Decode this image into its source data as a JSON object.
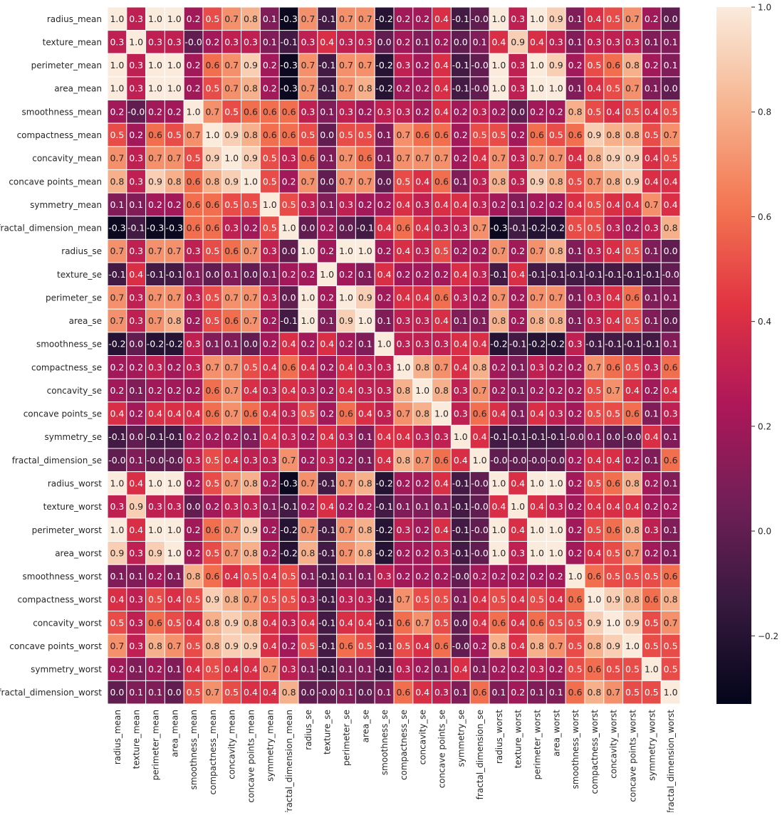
{
  "chart_data": {
    "type": "heatmap",
    "title": "",
    "xlabel": "",
    "ylabel": "",
    "labels": [
      "radius_mean",
      "texture_mean",
      "perimeter_mean",
      "area_mean",
      "smoothness_mean",
      "compactness_mean",
      "concavity_mean",
      "concave points_mean",
      "symmetry_mean",
      "fractal_dimension_mean",
      "radius_se",
      "texture_se",
      "perimeter_se",
      "area_se",
      "smoothness_se",
      "compactness_se",
      "concavity_se",
      "concave points_se",
      "symmetry_se",
      "fractal_dimension_se",
      "radius_worst",
      "texture_worst",
      "perimeter_worst",
      "area_worst",
      "smoothness_worst",
      "compactness_worst",
      "concavity_worst",
      "concave points_worst",
      "symmetry_worst",
      "fractal_dimension_worst"
    ],
    "value_labels": [
      [
        "1.0",
        "0.3",
        "1.0",
        "1.0",
        "0.2",
        "0.5",
        "0.7",
        "0.8",
        "0.1",
        "-0.3",
        "0.7",
        "-0.1",
        "0.7",
        "0.7",
        "-0.2",
        "0.2",
        "0.2",
        "0.4",
        "-0.1",
        "-0.0",
        "1.0",
        "0.3",
        "1.0",
        "0.9",
        "0.1",
        "0.4",
        "0.5",
        "0.7",
        "0.2",
        "0.0"
      ],
      [
        "0.3",
        "1.0",
        "0.3",
        "0.3",
        "-0.0",
        "0.2",
        "0.3",
        "0.3",
        "0.1",
        "-0.1",
        "0.3",
        "0.4",
        "0.3",
        "0.3",
        "0.0",
        "0.2",
        "0.1",
        "0.2",
        "0.0",
        "0.1",
        "0.4",
        "0.9",
        "0.4",
        "0.3",
        "0.1",
        "0.3",
        "0.3",
        "0.3",
        "0.1",
        "0.1"
      ],
      [
        "1.0",
        "0.3",
        "1.0",
        "1.0",
        "0.2",
        "0.6",
        "0.7",
        "0.9",
        "0.2",
        "-0.3",
        "0.7",
        "-0.1",
        "0.7",
        "0.7",
        "-0.2",
        "0.3",
        "0.2",
        "0.4",
        "-0.1",
        "-0.0",
        "1.0",
        "0.3",
        "1.0",
        "0.9",
        "0.2",
        "0.5",
        "0.6",
        "0.8",
        "0.2",
        "0.1"
      ],
      [
        "1.0",
        "0.3",
        "1.0",
        "1.0",
        "0.2",
        "0.5",
        "0.7",
        "0.8",
        "0.2",
        "-0.3",
        "0.7",
        "-0.1",
        "0.7",
        "0.8",
        "-0.2",
        "0.2",
        "0.2",
        "0.4",
        "-0.1",
        "-0.0",
        "1.0",
        "0.3",
        "1.0",
        "1.0",
        "0.1",
        "0.4",
        "0.5",
        "0.7",
        "0.1",
        "0.0"
      ],
      [
        "0.2",
        "-0.0",
        "0.2",
        "0.2",
        "1.0",
        "0.7",
        "0.5",
        "0.6",
        "0.6",
        "0.6",
        "0.3",
        "0.1",
        "0.3",
        "0.2",
        "0.3",
        "0.3",
        "0.2",
        "0.4",
        "0.2",
        "0.3",
        "0.2",
        "0.0",
        "0.2",
        "0.2",
        "0.8",
        "0.5",
        "0.4",
        "0.5",
        "0.4",
        "0.5"
      ],
      [
        "0.5",
        "0.2",
        "0.6",
        "0.5",
        "0.7",
        "1.0",
        "0.9",
        "0.8",
        "0.6",
        "0.6",
        "0.5",
        "0.0",
        "0.5",
        "0.5",
        "0.1",
        "0.7",
        "0.6",
        "0.6",
        "0.2",
        "0.5",
        "0.5",
        "0.2",
        "0.6",
        "0.5",
        "0.6",
        "0.9",
        "0.8",
        "0.8",
        "0.5",
        "0.7"
      ],
      [
        "0.7",
        "0.3",
        "0.7",
        "0.7",
        "0.5",
        "0.9",
        "1.0",
        "0.9",
        "0.5",
        "0.3",
        "0.6",
        "0.1",
        "0.7",
        "0.6",
        "0.1",
        "0.7",
        "0.7",
        "0.7",
        "0.2",
        "0.4",
        "0.7",
        "0.3",
        "0.7",
        "0.7",
        "0.4",
        "0.8",
        "0.9",
        "0.9",
        "0.4",
        "0.5"
      ],
      [
        "0.8",
        "0.3",
        "0.9",
        "0.8",
        "0.6",
        "0.8",
        "0.9",
        "1.0",
        "0.5",
        "0.2",
        "0.7",
        "0.0",
        "0.7",
        "0.7",
        "0.0",
        "0.5",
        "0.4",
        "0.6",
        "0.1",
        "0.3",
        "0.8",
        "0.3",
        "0.9",
        "0.8",
        "0.5",
        "0.7",
        "0.8",
        "0.9",
        "0.4",
        "0.4"
      ],
      [
        "0.1",
        "0.1",
        "0.2",
        "0.2",
        "0.6",
        "0.6",
        "0.5",
        "0.5",
        "1.0",
        "0.5",
        "0.3",
        "0.1",
        "0.3",
        "0.2",
        "0.2",
        "0.4",
        "0.3",
        "0.4",
        "0.4",
        "0.3",
        "0.2",
        "0.1",
        "0.2",
        "0.2",
        "0.4",
        "0.5",
        "0.4",
        "0.4",
        "0.7",
        "0.4"
      ],
      [
        "-0.3",
        "-0.1",
        "-0.3",
        "-0.3",
        "0.6",
        "0.6",
        "0.3",
        "0.2",
        "0.5",
        "1.0",
        "0.0",
        "0.2",
        "0.0",
        "-0.1",
        "0.4",
        "0.6",
        "0.4",
        "0.3",
        "0.3",
        "0.7",
        "-0.3",
        "-0.1",
        "-0.2",
        "-0.2",
        "0.5",
        "0.5",
        "0.3",
        "0.2",
        "0.3",
        "0.8"
      ],
      [
        "0.7",
        "0.3",
        "0.7",
        "0.7",
        "0.3",
        "0.5",
        "0.6",
        "0.7",
        "0.3",
        "0.0",
        "1.0",
        "0.2",
        "1.0",
        "1.0",
        "0.2",
        "0.4",
        "0.3",
        "0.5",
        "0.2",
        "0.2",
        "0.7",
        "0.2",
        "0.7",
        "0.8",
        "0.1",
        "0.3",
        "0.4",
        "0.5",
        "0.1",
        "0.0"
      ],
      [
        "-0.1",
        "0.4",
        "-0.1",
        "-0.1",
        "0.1",
        "0.0",
        "0.1",
        "0.0",
        "0.1",
        "0.2",
        "0.2",
        "1.0",
        "0.2",
        "0.1",
        "0.4",
        "0.2",
        "0.2",
        "0.2",
        "0.4",
        "0.3",
        "-0.1",
        "0.4",
        "-0.1",
        "-0.1",
        "-0.1",
        "-0.1",
        "-0.1",
        "-0.1",
        "-0.1",
        "-0.0"
      ],
      [
        "0.7",
        "0.3",
        "0.7",
        "0.7",
        "0.3",
        "0.5",
        "0.7",
        "0.7",
        "0.3",
        "0.0",
        "1.0",
        "0.2",
        "1.0",
        "0.9",
        "0.2",
        "0.4",
        "0.4",
        "0.6",
        "0.3",
        "0.2",
        "0.7",
        "0.2",
        "0.7",
        "0.7",
        "0.1",
        "0.3",
        "0.4",
        "0.6",
        "0.1",
        "0.1"
      ],
      [
        "0.7",
        "0.3",
        "0.7",
        "0.8",
        "0.2",
        "0.5",
        "0.6",
        "0.7",
        "0.2",
        "-0.1",
        "1.0",
        "0.1",
        "0.9",
        "1.0",
        "0.1",
        "0.3",
        "0.3",
        "0.4",
        "0.1",
        "0.1",
        "0.8",
        "0.2",
        "0.8",
        "0.8",
        "0.1",
        "0.3",
        "0.4",
        "0.5",
        "0.1",
        "0.0"
      ],
      [
        "-0.2",
        "0.0",
        "-0.2",
        "-0.2",
        "0.3",
        "0.1",
        "0.1",
        "0.0",
        "0.2",
        "0.4",
        "0.2",
        "0.4",
        "0.2",
        "0.1",
        "1.0",
        "0.3",
        "0.3",
        "0.3",
        "0.4",
        "0.4",
        "-0.2",
        "-0.1",
        "-0.2",
        "-0.2",
        "0.3",
        "-0.1",
        "-0.1",
        "-0.1",
        "-0.1",
        "0.1"
      ],
      [
        "0.2",
        "0.2",
        "0.3",
        "0.2",
        "0.3",
        "0.7",
        "0.7",
        "0.5",
        "0.4",
        "0.6",
        "0.4",
        "0.2",
        "0.4",
        "0.3",
        "0.3",
        "1.0",
        "0.8",
        "0.7",
        "0.4",
        "0.8",
        "0.2",
        "0.1",
        "0.3",
        "0.2",
        "0.2",
        "0.7",
        "0.6",
        "0.5",
        "0.3",
        "0.6"
      ],
      [
        "0.2",
        "0.1",
        "0.2",
        "0.2",
        "0.2",
        "0.6",
        "0.7",
        "0.4",
        "0.3",
        "0.4",
        "0.3",
        "0.2",
        "0.4",
        "0.3",
        "0.3",
        "0.8",
        "1.0",
        "0.8",
        "0.3",
        "0.7",
        "0.2",
        "0.1",
        "0.2",
        "0.2",
        "0.2",
        "0.5",
        "0.7",
        "0.4",
        "0.2",
        "0.4"
      ],
      [
        "0.4",
        "0.2",
        "0.4",
        "0.4",
        "0.4",
        "0.6",
        "0.7",
        "0.6",
        "0.4",
        "0.3",
        "0.5",
        "0.2",
        "0.6",
        "0.4",
        "0.3",
        "0.7",
        "0.8",
        "1.0",
        "0.3",
        "0.6",
        "0.4",
        "0.1",
        "0.4",
        "0.3",
        "0.2",
        "0.5",
        "0.5",
        "0.6",
        "0.1",
        "0.3"
      ],
      [
        "-0.1",
        "0.0",
        "-0.1",
        "-0.1",
        "0.2",
        "0.2",
        "0.2",
        "0.1",
        "0.4",
        "0.3",
        "0.2",
        "0.4",
        "0.3",
        "0.1",
        "0.4",
        "0.4",
        "0.3",
        "0.3",
        "1.0",
        "0.4",
        "-0.1",
        "-0.1",
        "-0.1",
        "-0.1",
        "-0.0",
        "0.1",
        "0.0",
        "-0.0",
        "0.4",
        "0.1"
      ],
      [
        "-0.0",
        "0.1",
        "-0.0",
        "-0.0",
        "0.3",
        "0.5",
        "0.4",
        "0.3",
        "0.3",
        "0.7",
        "0.2",
        "0.3",
        "0.2",
        "0.1",
        "0.4",
        "0.8",
        "0.7",
        "0.6",
        "0.4",
        "1.0",
        "-0.0",
        "-0.0",
        "-0.0",
        "-0.0",
        "0.2",
        "0.4",
        "0.4",
        "0.2",
        "0.1",
        "0.6"
      ],
      [
        "1.0",
        "0.4",
        "1.0",
        "1.0",
        "0.2",
        "0.5",
        "0.7",
        "0.8",
        "0.2",
        "-0.3",
        "0.7",
        "-0.1",
        "0.7",
        "0.8",
        "-0.2",
        "0.2",
        "0.2",
        "0.4",
        "-0.1",
        "-0.0",
        "1.0",
        "0.4",
        "1.0",
        "1.0",
        "0.2",
        "0.5",
        "0.6",
        "0.8",
        "0.2",
        "0.1"
      ],
      [
        "0.3",
        "0.9",
        "0.3",
        "0.3",
        "0.0",
        "0.2",
        "0.3",
        "0.3",
        "0.1",
        "-0.1",
        "0.2",
        "0.4",
        "0.2",
        "0.2",
        "-0.1",
        "0.1",
        "0.1",
        "0.1",
        "-0.1",
        "-0.0",
        "0.4",
        "1.0",
        "0.4",
        "0.3",
        "0.2",
        "0.4",
        "0.4",
        "0.4",
        "0.2",
        "0.2"
      ],
      [
        "1.0",
        "0.4",
        "1.0",
        "1.0",
        "0.2",
        "0.6",
        "0.7",
        "0.9",
        "0.2",
        "-0.2",
        "0.7",
        "-0.1",
        "0.7",
        "0.8",
        "-0.2",
        "0.3",
        "0.2",
        "0.4",
        "-0.1",
        "-0.0",
        "1.0",
        "0.4",
        "1.0",
        "1.0",
        "0.2",
        "0.5",
        "0.6",
        "0.8",
        "0.3",
        "0.1"
      ],
      [
        "0.9",
        "0.3",
        "0.9",
        "1.0",
        "0.2",
        "0.5",
        "0.7",
        "0.8",
        "0.2",
        "-0.2",
        "0.8",
        "-0.1",
        "0.7",
        "0.8",
        "-0.2",
        "0.2",
        "0.2",
        "0.3",
        "-0.1",
        "-0.0",
        "1.0",
        "0.3",
        "1.0",
        "1.0",
        "0.2",
        "0.4",
        "0.5",
        "0.7",
        "0.2",
        "0.1"
      ],
      [
        "0.1",
        "0.1",
        "0.2",
        "0.1",
        "0.8",
        "0.6",
        "0.4",
        "0.5",
        "0.4",
        "0.5",
        "0.1",
        "-0.1",
        "0.1",
        "0.1",
        "0.3",
        "0.2",
        "0.2",
        "0.2",
        "-0.0",
        "0.2",
        "0.2",
        "0.2",
        "0.2",
        "0.2",
        "1.0",
        "0.6",
        "0.5",
        "0.5",
        "0.5",
        "0.6"
      ],
      [
        "0.4",
        "0.3",
        "0.5",
        "0.4",
        "0.5",
        "0.9",
        "0.8",
        "0.7",
        "0.5",
        "0.5",
        "0.3",
        "-0.1",
        "0.3",
        "0.3",
        "-0.1",
        "0.7",
        "0.5",
        "0.5",
        "0.1",
        "0.4",
        "0.5",
        "0.4",
        "0.5",
        "0.4",
        "0.6",
        "1.0",
        "0.9",
        "0.8",
        "0.6",
        "0.8"
      ],
      [
        "0.5",
        "0.3",
        "0.6",
        "0.5",
        "0.4",
        "0.8",
        "0.9",
        "0.8",
        "0.4",
        "0.3",
        "0.4",
        "-0.1",
        "0.4",
        "0.4",
        "-0.1",
        "0.6",
        "0.7",
        "0.5",
        "0.0",
        "0.4",
        "0.6",
        "0.4",
        "0.6",
        "0.5",
        "0.5",
        "0.9",
        "1.0",
        "0.9",
        "0.5",
        "0.7"
      ],
      [
        "0.7",
        "0.3",
        "0.8",
        "0.7",
        "0.5",
        "0.8",
        "0.9",
        "0.9",
        "0.4",
        "0.2",
        "0.5",
        "-0.1",
        "0.6",
        "0.5",
        "-0.1",
        "0.5",
        "0.4",
        "0.6",
        "-0.0",
        "0.2",
        "0.8",
        "0.4",
        "0.8",
        "0.7",
        "0.5",
        "0.8",
        "0.9",
        "1.0",
        "0.5",
        "0.5"
      ],
      [
        "0.2",
        "0.1",
        "0.2",
        "0.1",
        "0.4",
        "0.5",
        "0.4",
        "0.4",
        "0.7",
        "0.3",
        "0.1",
        "-0.1",
        "0.1",
        "0.1",
        "-0.1",
        "0.3",
        "0.2",
        "0.1",
        "0.4",
        "0.1",
        "0.2",
        "0.2",
        "0.3",
        "0.2",
        "0.5",
        "0.6",
        "0.5",
        "0.5",
        "1.0",
        "0.5"
      ],
      [
        "0.0",
        "0.1",
        "0.1",
        "0.0",
        "0.5",
        "0.7",
        "0.5",
        "0.4",
        "0.4",
        "0.8",
        "0.0",
        "-0.0",
        "0.1",
        "0.0",
        "0.1",
        "0.6",
        "0.4",
        "0.3",
        "0.1",
        "0.6",
        "0.1",
        "0.2",
        "0.1",
        "0.1",
        "0.6",
        "0.8",
        "0.7",
        "0.5",
        "0.5",
        "1.0"
      ]
    ],
    "colorbar": {
      "min": -0.33,
      "max": 1.0,
      "ticks": [
        -0.2,
        0.0,
        0.2,
        0.4,
        0.6,
        0.8,
        1.0
      ],
      "tick_labels": [
        "−0.2",
        "0.0",
        "0.2",
        "0.4",
        "0.6",
        "0.8",
        "1.0"
      ],
      "colormap": "rocket",
      "stops": [
        "#03051a",
        "#36193e",
        "#701f57",
        "#ae1759",
        "#e13342",
        "#f37651",
        "#f6b48f",
        "#faebdd"
      ]
    },
    "annotation_colors": {
      "on_dark": "#ffffff",
      "on_light": "#262626"
    },
    "grid_line_color": "#ffffff"
  }
}
